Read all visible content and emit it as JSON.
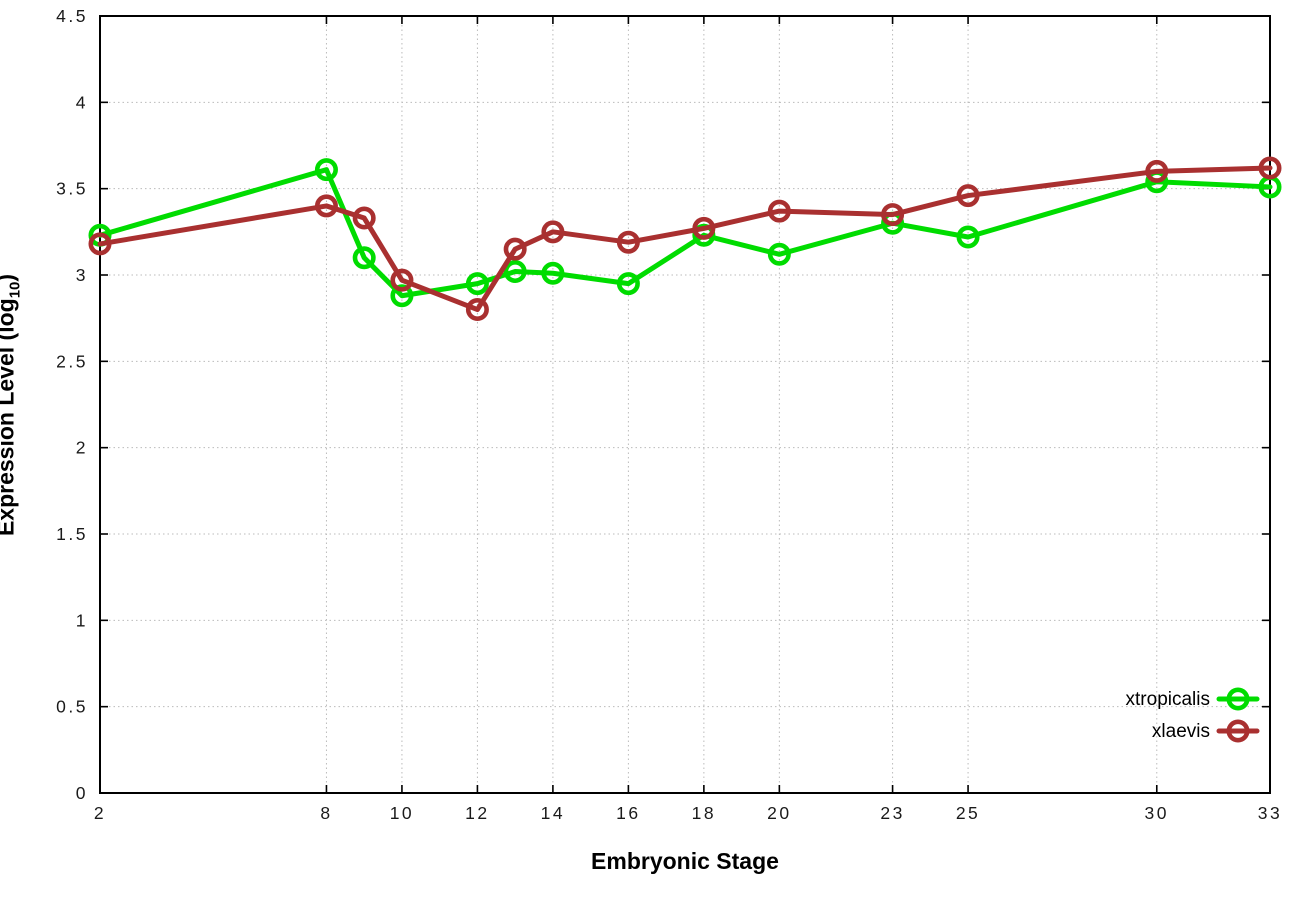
{
  "figure": {
    "background": "#FFFFFF",
    "border_color": "#000000",
    "grid_color": "#BBBBBB",
    "tick_text_color": "#1A1A1A"
  },
  "chart_data": {
    "type": "line",
    "title": "",
    "xlabel": "Embryonic Stage",
    "ylabel": "Expression Level (log10)",
    "ylabel_parts": [
      "Expression Level (log",
      "10",
      ")"
    ],
    "xlim": [
      2,
      33
    ],
    "ylim": [
      0,
      4.5
    ],
    "grid": true,
    "legend_position": "bottom-right-inside",
    "x": [
      2,
      8,
      9,
      10,
      12,
      13,
      14,
      16,
      18,
      20,
      23,
      25,
      30,
      33
    ],
    "x_tick_values": [
      2,
      8,
      10,
      12,
      14,
      16,
      18,
      20,
      23,
      25,
      30,
      33
    ],
    "x_tick_labels": [
      "2",
      "8",
      "10",
      "12",
      "14",
      "16",
      "18",
      "20",
      "23",
      "25",
      "30",
      "33"
    ],
    "y_tick_values": [
      0,
      0.5,
      1,
      1.5,
      2,
      2.5,
      3,
      3.5,
      4,
      4.5
    ],
    "y_tick_labels": [
      "0",
      "0.5",
      "1",
      "1.5",
      "2",
      "2.5",
      "3",
      "3.5",
      "4",
      "4.5"
    ],
    "series": [
      {
        "name": "xtropicalis",
        "color": "#00DC00",
        "marker": "open-circle",
        "values": [
          3.23,
          3.61,
          3.1,
          2.88,
          2.95,
          3.02,
          3.01,
          2.95,
          3.23,
          3.12,
          3.3,
          3.22,
          3.54,
          3.51
        ]
      },
      {
        "name": "xlaevis",
        "color": "#A93030",
        "marker": "open-circle",
        "values": [
          3.18,
          3.4,
          3.33,
          2.97,
          2.8,
          3.15,
          3.25,
          3.19,
          3.27,
          3.37,
          3.35,
          3.46,
          3.6,
          3.62
        ]
      }
    ]
  }
}
